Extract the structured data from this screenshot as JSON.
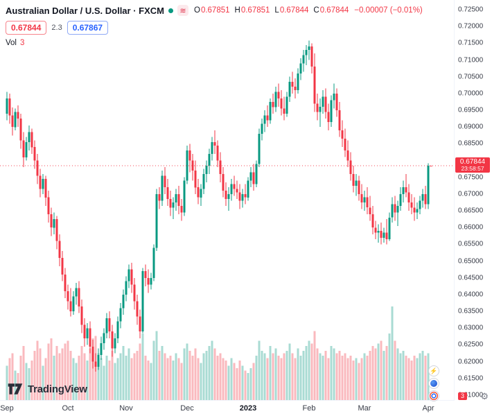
{
  "header": {
    "symbol_title": "Australian Dollar / U.S. Dollar · FXCM",
    "ohlc": {
      "open_label": "O",
      "open": "0.67851",
      "high_label": "H",
      "high": "0.67851",
      "low_label": "L",
      "low": "0.67844",
      "close_label": "C",
      "close": "0.67844",
      "change": "−0.00007 (−0.01%)"
    },
    "bid": "0.67844",
    "spread": "2.3",
    "ask": "0.67867",
    "vol_label": "Vol",
    "vol_value": "3"
  },
  "icons": {
    "fxcm_logo": "≋",
    "lightning": "⚡",
    "gear": "⚙"
  },
  "footer": {
    "logo_text": "TradingView"
  },
  "colors": {
    "up": "#089981",
    "down": "#f23645",
    "accent_blue": "#2962ff"
  },
  "price_axis": {
    "ticks": [
      "0.72500",
      "0.72000",
      "0.71500",
      "0.71000",
      "0.70500",
      "0.70000",
      "0.69500",
      "0.69000",
      "0.68500",
      "0.68000",
      "0.67500",
      "0.67000",
      "0.66500",
      "0.66000",
      "0.65500",
      "0.65000",
      "0.64500",
      "0.64000",
      "0.63500",
      "0.63000",
      "0.62500",
      "0.62000",
      "0.61500",
      "0.61000"
    ],
    "last_price": "0.67844",
    "countdown": "23:58:57",
    "last_volume": "3"
  },
  "chart_data": {
    "type": "candlestick",
    "title": "Australian Dollar / U.S. Dollar · FXCM",
    "ylim": [
      0.61,
      0.725
    ],
    "y_tick_step": 0.005,
    "last_close": 0.67844,
    "x_ticks": [
      {
        "label": "Sep",
        "index": 0
      },
      {
        "label": "Oct",
        "index": 22
      },
      {
        "label": "Nov",
        "index": 43
      },
      {
        "label": "Dec",
        "index": 65
      },
      {
        "label": "2023",
        "index": 87,
        "strong": true
      },
      {
        "label": "Feb",
        "index": 109
      },
      {
        "label": "Mar",
        "index": 129
      },
      {
        "label": "Apr",
        "index": 152
      }
    ],
    "candles": [
      [
        0.694,
        0.7005,
        0.692,
        0.6985
      ],
      [
        0.6985,
        0.7,
        0.691,
        0.6935
      ],
      [
        0.6935,
        0.6958,
        0.6875,
        0.69
      ],
      [
        0.69,
        0.6955,
        0.689,
        0.6945
      ],
      [
        0.6945,
        0.6965,
        0.69,
        0.6925
      ],
      [
        0.6925,
        0.694,
        0.6835,
        0.686
      ],
      [
        0.686,
        0.6885,
        0.678,
        0.681
      ],
      [
        0.681,
        0.687,
        0.68,
        0.6855
      ],
      [
        0.6855,
        0.6905,
        0.683,
        0.6885
      ],
      [
        0.6885,
        0.6895,
        0.682,
        0.684
      ],
      [
        0.684,
        0.686,
        0.6775,
        0.68
      ],
      [
        0.68,
        0.682,
        0.673,
        0.6755
      ],
      [
        0.6755,
        0.6775,
        0.669,
        0.6715
      ],
      [
        0.6715,
        0.676,
        0.67,
        0.6745
      ],
      [
        0.6745,
        0.6755,
        0.6665,
        0.669
      ],
      [
        0.669,
        0.671,
        0.6615,
        0.664
      ],
      [
        0.664,
        0.666,
        0.6575,
        0.66
      ],
      [
        0.66,
        0.6645,
        0.658,
        0.6625
      ],
      [
        0.6625,
        0.6635,
        0.6535,
        0.656
      ],
      [
        0.656,
        0.658,
        0.6485,
        0.651
      ],
      [
        0.651,
        0.653,
        0.644,
        0.646
      ],
      [
        0.646,
        0.648,
        0.639,
        0.641
      ],
      [
        0.641,
        0.643,
        0.6355,
        0.638
      ],
      [
        0.638,
        0.642,
        0.6335,
        0.635
      ],
      [
        0.635,
        0.641,
        0.634,
        0.6395
      ],
      [
        0.6395,
        0.6435,
        0.637,
        0.642
      ],
      [
        0.642,
        0.644,
        0.6345,
        0.6365
      ],
      [
        0.6365,
        0.6385,
        0.6285,
        0.631
      ],
      [
        0.631,
        0.633,
        0.6245,
        0.627
      ],
      [
        0.627,
        0.6315,
        0.625,
        0.63
      ],
      [
        0.63,
        0.632,
        0.6225,
        0.6245
      ],
      [
        0.6245,
        0.6265,
        0.618,
        0.62
      ],
      [
        0.62,
        0.6225,
        0.617,
        0.6185
      ],
      [
        0.6185,
        0.624,
        0.6175,
        0.622
      ],
      [
        0.622,
        0.6275,
        0.6205,
        0.6255
      ],
      [
        0.6255,
        0.63,
        0.6235,
        0.6285
      ],
      [
        0.6285,
        0.6345,
        0.627,
        0.633
      ],
      [
        0.633,
        0.635,
        0.627,
        0.629
      ],
      [
        0.629,
        0.631,
        0.6215,
        0.624
      ],
      [
        0.624,
        0.6285,
        0.6225,
        0.627
      ],
      [
        0.627,
        0.6335,
        0.6255,
        0.632
      ],
      [
        0.632,
        0.6375,
        0.63,
        0.636
      ],
      [
        0.636,
        0.6415,
        0.634,
        0.64
      ],
      [
        0.64,
        0.6455,
        0.638,
        0.644
      ],
      [
        0.644,
        0.649,
        0.642,
        0.6475
      ],
      [
        0.6475,
        0.6495,
        0.6405,
        0.643
      ],
      [
        0.643,
        0.645,
        0.6355,
        0.638
      ],
      [
        0.638,
        0.64,
        0.631,
        0.6335
      ],
      [
        0.6335,
        0.6355,
        0.627,
        0.629
      ],
      [
        0.629,
        0.648,
        0.6285,
        0.647
      ],
      [
        0.647,
        0.649,
        0.6425,
        0.645
      ],
      [
        0.645,
        0.6475,
        0.6405,
        0.643
      ],
      [
        0.643,
        0.6465,
        0.6415,
        0.645
      ],
      [
        0.645,
        0.655,
        0.644,
        0.654
      ],
      [
        0.654,
        0.6715,
        0.653,
        0.67
      ],
      [
        0.67,
        0.672,
        0.6655,
        0.668
      ],
      [
        0.668,
        0.677,
        0.6665,
        0.6755
      ],
      [
        0.6755,
        0.678,
        0.67,
        0.672
      ],
      [
        0.672,
        0.6745,
        0.6665,
        0.6685
      ],
      [
        0.6685,
        0.671,
        0.6635,
        0.666
      ],
      [
        0.666,
        0.669,
        0.6625,
        0.6675
      ],
      [
        0.6675,
        0.6715,
        0.665,
        0.67
      ],
      [
        0.67,
        0.6725,
        0.664,
        0.6665
      ],
      [
        0.6665,
        0.6685,
        0.662,
        0.6645
      ],
      [
        0.6645,
        0.675,
        0.6635,
        0.674
      ],
      [
        0.674,
        0.6845,
        0.673,
        0.683
      ],
      [
        0.683,
        0.685,
        0.6765,
        0.68
      ],
      [
        0.68,
        0.682,
        0.674,
        0.677
      ],
      [
        0.677,
        0.68,
        0.67,
        0.672
      ],
      [
        0.672,
        0.6745,
        0.667,
        0.669
      ],
      [
        0.669,
        0.673,
        0.6665,
        0.6715
      ],
      [
        0.6715,
        0.6775,
        0.67,
        0.676
      ],
      [
        0.676,
        0.68,
        0.6735,
        0.6785
      ],
      [
        0.6785,
        0.6835,
        0.676,
        0.682
      ],
      [
        0.682,
        0.687,
        0.68,
        0.6855
      ],
      [
        0.6855,
        0.689,
        0.682,
        0.6845
      ],
      [
        0.6845,
        0.686,
        0.678,
        0.68
      ],
      [
        0.68,
        0.6825,
        0.6735,
        0.676
      ],
      [
        0.676,
        0.678,
        0.669,
        0.671
      ],
      [
        0.671,
        0.6735,
        0.6665,
        0.6685
      ],
      [
        0.6685,
        0.672,
        0.665,
        0.67
      ],
      [
        0.67,
        0.6745,
        0.668,
        0.673
      ],
      [
        0.673,
        0.6755,
        0.6695,
        0.6715
      ],
      [
        0.6715,
        0.674,
        0.6685,
        0.6705
      ],
      [
        0.6705,
        0.673,
        0.6655,
        0.668
      ],
      [
        0.668,
        0.6715,
        0.666,
        0.67
      ],
      [
        0.67,
        0.673,
        0.667,
        0.669
      ],
      [
        0.669,
        0.675,
        0.668,
        0.674
      ],
      [
        0.674,
        0.678,
        0.672,
        0.6765
      ],
      [
        0.6765,
        0.679,
        0.671,
        0.673
      ],
      [
        0.673,
        0.68,
        0.672,
        0.679
      ],
      [
        0.679,
        0.6895,
        0.678,
        0.688
      ],
      [
        0.688,
        0.6925,
        0.686,
        0.691
      ],
      [
        0.691,
        0.695,
        0.6885,
        0.6935
      ],
      [
        0.6935,
        0.6965,
        0.69,
        0.692
      ],
      [
        0.692,
        0.6985,
        0.691,
        0.6975
      ],
      [
        0.6975,
        0.7,
        0.694,
        0.696
      ],
      [
        0.696,
        0.702,
        0.6945,
        0.7005
      ],
      [
        0.7005,
        0.703,
        0.696,
        0.6985
      ],
      [
        0.6985,
        0.701,
        0.6935,
        0.6955
      ],
      [
        0.6955,
        0.699,
        0.692,
        0.694
      ],
      [
        0.694,
        0.7005,
        0.693,
        0.699
      ],
      [
        0.699,
        0.705,
        0.6975,
        0.7035
      ],
      [
        0.7035,
        0.7065,
        0.7,
        0.702
      ],
      [
        0.702,
        0.7045,
        0.6985,
        0.701
      ],
      [
        0.701,
        0.7075,
        0.7,
        0.706
      ],
      [
        0.706,
        0.7105,
        0.704,
        0.709
      ],
      [
        0.709,
        0.713,
        0.7065,
        0.7115
      ],
      [
        0.7115,
        0.7145,
        0.7085,
        0.713
      ],
      [
        0.713,
        0.7158,
        0.71,
        0.714
      ],
      [
        0.714,
        0.715,
        0.706,
        0.708
      ],
      [
        0.708,
        0.712,
        0.6945,
        0.697
      ],
      [
        0.697,
        0.7,
        0.692,
        0.6945
      ],
      [
        0.6945,
        0.6985,
        0.69,
        0.696
      ],
      [
        0.696,
        0.701,
        0.694,
        0.699
      ],
      [
        0.699,
        0.7015,
        0.6925,
        0.6945
      ],
      [
        0.6945,
        0.697,
        0.689,
        0.6915
      ],
      [
        0.6915,
        0.6995,
        0.69,
        0.698
      ],
      [
        0.698,
        0.703,
        0.6955,
        0.7
      ],
      [
        0.7,
        0.7015,
        0.693,
        0.695
      ],
      [
        0.695,
        0.6975,
        0.687,
        0.689
      ],
      [
        0.689,
        0.692,
        0.684,
        0.6865
      ],
      [
        0.6865,
        0.6895,
        0.681,
        0.683
      ],
      [
        0.683,
        0.686,
        0.678,
        0.68
      ],
      [
        0.68,
        0.6825,
        0.674,
        0.676
      ],
      [
        0.676,
        0.6785,
        0.6705,
        0.6725
      ],
      [
        0.6725,
        0.676,
        0.6695,
        0.674
      ],
      [
        0.674,
        0.6755,
        0.668,
        0.67
      ],
      [
        0.67,
        0.673,
        0.6655,
        0.6675
      ],
      [
        0.6675,
        0.671,
        0.665,
        0.669
      ],
      [
        0.669,
        0.672,
        0.664,
        0.666
      ],
      [
        0.666,
        0.6695,
        0.662,
        0.664
      ],
      [
        0.664,
        0.6665,
        0.658,
        0.66
      ],
      [
        0.66,
        0.662,
        0.6565,
        0.6585
      ],
      [
        0.6585,
        0.661,
        0.6555,
        0.659
      ],
      [
        0.659,
        0.6615,
        0.655,
        0.657
      ],
      [
        0.657,
        0.66,
        0.6555,
        0.6585
      ],
      [
        0.6585,
        0.6625,
        0.655,
        0.6565
      ],
      [
        0.6565,
        0.6645,
        0.656,
        0.663
      ],
      [
        0.663,
        0.669,
        0.6615,
        0.667
      ],
      [
        0.667,
        0.6695,
        0.662,
        0.6645
      ],
      [
        0.6645,
        0.668,
        0.6605,
        0.6665
      ],
      [
        0.6665,
        0.672,
        0.665,
        0.67
      ],
      [
        0.67,
        0.674,
        0.6675,
        0.672
      ],
      [
        0.672,
        0.676,
        0.669,
        0.6705
      ],
      [
        0.6705,
        0.673,
        0.665,
        0.6675
      ],
      [
        0.6675,
        0.67,
        0.664,
        0.666
      ],
      [
        0.666,
        0.669,
        0.662,
        0.6645
      ],
      [
        0.6645,
        0.6675,
        0.6625,
        0.6655
      ],
      [
        0.6655,
        0.6695,
        0.664,
        0.668
      ],
      [
        0.668,
        0.6715,
        0.666,
        0.67
      ],
      [
        0.67,
        0.6725,
        0.6655,
        0.667
      ],
      [
        0.667,
        0.6792,
        0.6655,
        0.67844
      ],
      [
        0.67851,
        0.67851,
        0.67844,
        0.67844
      ]
    ],
    "volumes": [
      70,
      85,
      95,
      60,
      55,
      90,
      110,
      75,
      65,
      80,
      100,
      120,
      105,
      70,
      85,
      115,
      125,
      90,
      110,
      95,
      105,
      115,
      120,
      100,
      85,
      75,
      90,
      110,
      95,
      80,
      105,
      125,
      130,
      95,
      85,
      70,
      90,
      80,
      100,
      75,
      85,
      95,
      110,
      90,
      105,
      85,
      95,
      100,
      115,
      135,
      90,
      80,
      75,
      120,
      140,
      100,
      110,
      95,
      85,
      90,
      80,
      95,
      85,
      75,
      105,
      115,
      100,
      90,
      105,
      85,
      75,
      95,
      100,
      110,
      120,
      105,
      90,
      95,
      85,
      80,
      70,
      85,
      75,
      65,
      80,
      70,
      60,
      55,
      65,
      75,
      90,
      120,
      100,
      95,
      85,
      110,
      95,
      105,
      90,
      85,
      95,
      100,
      115,
      95,
      85,
      105,
      90,
      100,
      110,
      120,
      115,
      140,
      105,
      95,
      90,
      100,
      85,
      110,
      105,
      95,
      100,
      90,
      95,
      85,
      90,
      80,
      85,
      75,
      85,
      95,
      90,
      100,
      110,
      105,
      115,
      120,
      100,
      110,
      135,
      190,
      120,
      105,
      95,
      100,
      90,
      85,
      80,
      90,
      85,
      95,
      100,
      90,
      95,
      3
    ]
  }
}
